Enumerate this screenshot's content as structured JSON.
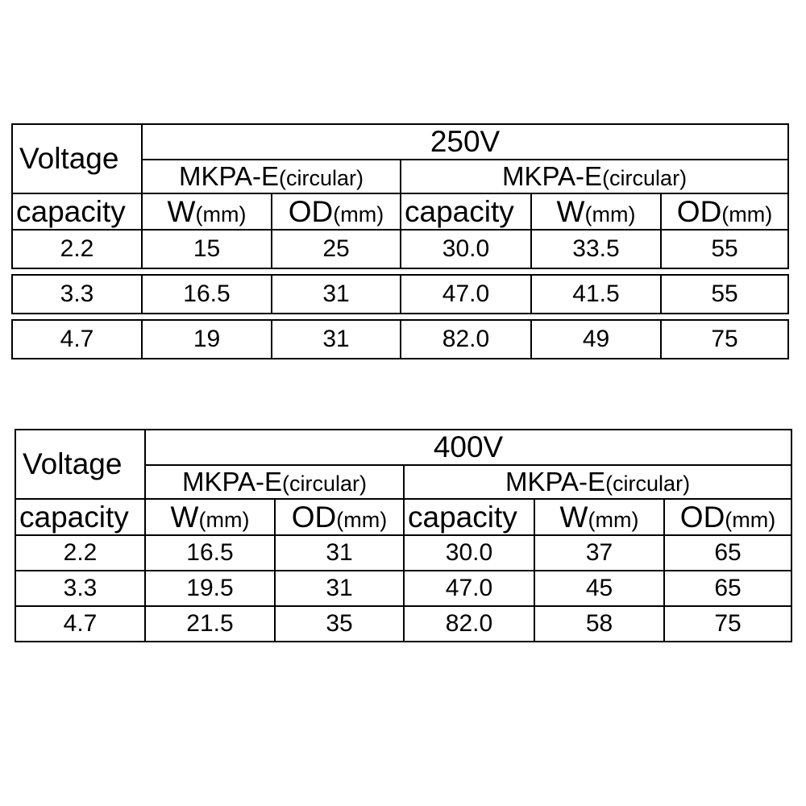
{
  "tables": [
    {
      "header_label": "Voltage",
      "voltage": "250V",
      "series_left": {
        "name": "MKPA-E",
        "shape": "(circular)"
      },
      "series_right": {
        "name": "MKPA-E",
        "shape": "(circular)"
      },
      "col_capacity": "capacity",
      "col_w": {
        "name": "W",
        "unit": "(mm)"
      },
      "col_od": {
        "name": "OD",
        "unit": "(mm)"
      },
      "rows": [
        {
          "cap1": "2.2",
          "w1": "15",
          "od1": "25",
          "cap2": "30.0",
          "w2": "33.5",
          "od2": "55"
        },
        {
          "cap1": "3.3",
          "w1": "16.5",
          "od1": "31",
          "cap2": "47.0",
          "w2": "41.5",
          "od2": "55"
        },
        {
          "cap1": "4.7",
          "w1": "19",
          "od1": "31",
          "cap2": "82.0",
          "w2": "49",
          "od2": "75"
        }
      ]
    },
    {
      "header_label": "Voltage",
      "voltage": "400V",
      "series_left": {
        "name": "MKPA-E",
        "shape": "(circular)"
      },
      "series_right": {
        "name": "MKPA-E",
        "shape": "(circular)"
      },
      "col_capacity": "capacity",
      "col_w": {
        "name": "W",
        "unit": "(mm)"
      },
      "col_od": {
        "name": "OD",
        "unit": "(mm)"
      },
      "rows": [
        {
          "cap1": "2.2",
          "w1": "16.5",
          "od1": "31",
          "cap2": "30.0",
          "w2": "37",
          "od2": "65"
        },
        {
          "cap1": "3.3",
          "w1": "19.5",
          "od1": "31",
          "cap2": "47.0",
          "w2": "45",
          "od2": "65"
        },
        {
          "cap1": "4.7",
          "w1": "21.5",
          "od1": "35",
          "cap2": "82.0",
          "w2": "58",
          "od2": "75"
        }
      ]
    }
  ]
}
